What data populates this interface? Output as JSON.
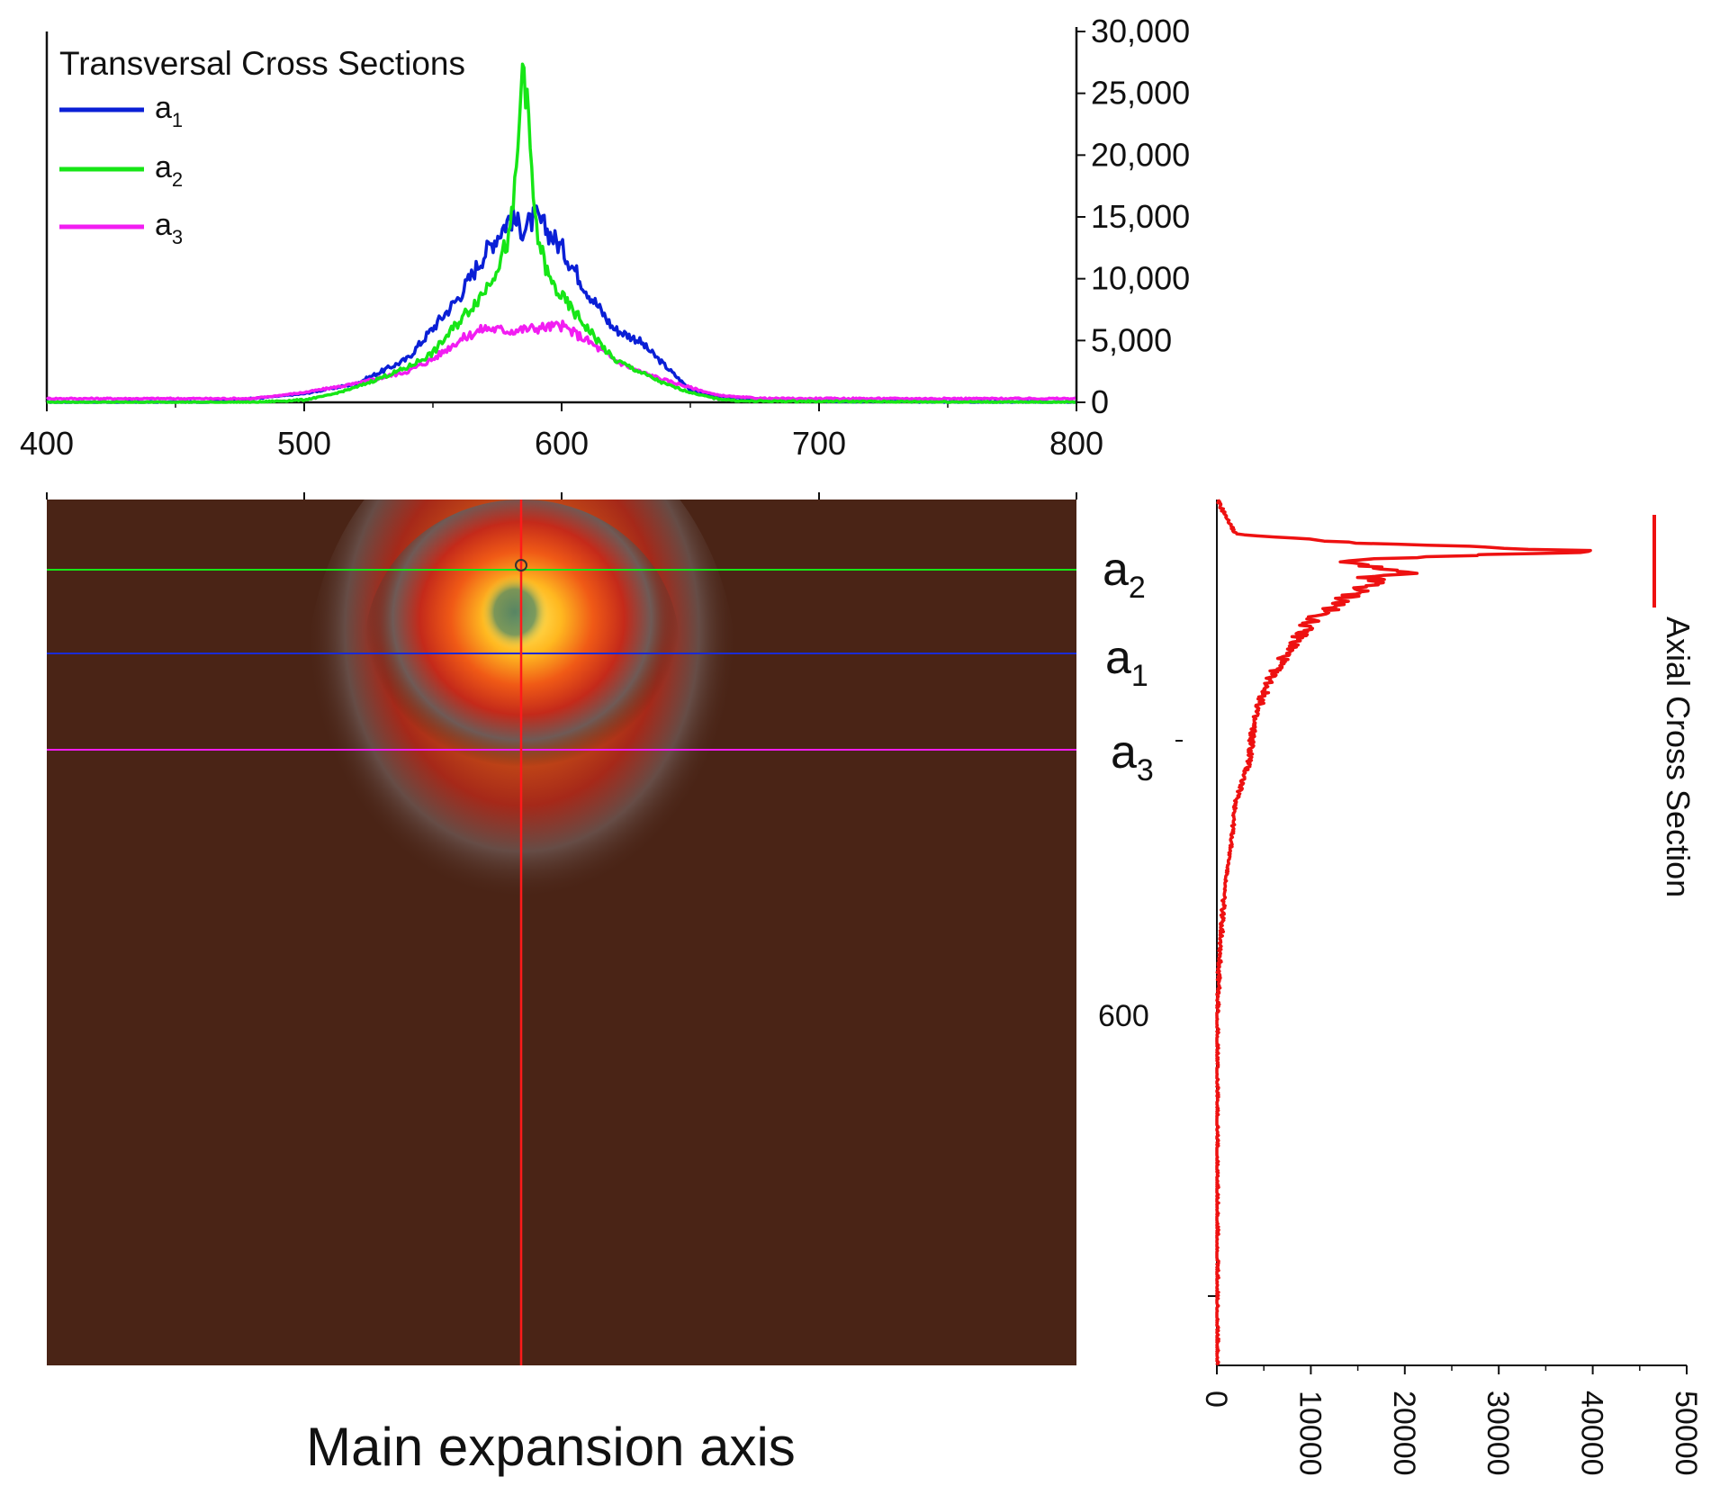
{
  "colors": {
    "a1": "#0a1fd6",
    "a2": "#16e616",
    "a3": "#f21df2",
    "axial": "#ee1111",
    "vertical_marker": "#ff1a1a",
    "image_background": "#4a2416"
  },
  "chart_data": [
    {
      "id": "transversal",
      "type": "line",
      "legend_title": "Transversal Cross Sections",
      "legend_position": "top-left",
      "xlim": [
        400,
        800
      ],
      "ylim": [
        0,
        30000
      ],
      "x_ticks": [
        400,
        500,
        600,
        700,
        800
      ],
      "x_tick_labels": [
        "400",
        "500",
        "600",
        "700",
        "800"
      ],
      "y_ticks": [
        0,
        5000,
        10000,
        15000,
        20000,
        25000,
        30000
      ],
      "y_tick_labels": [
        "0",
        "5,000",
        "10,000",
        "15,000",
        "20,000",
        "25,000",
        "30,000"
      ],
      "y_axis_side": "right",
      "series": [
        {
          "name": "a",
          "sub": "1",
          "color_key": "a1",
          "x": [
            400,
            460,
            480,
            500,
            520,
            540,
            550,
            560,
            570,
            580,
            585,
            590,
            600,
            610,
            620,
            630,
            640,
            650,
            660,
            680,
            700,
            800
          ],
          "y": [
            0,
            0,
            300,
            700,
            1500,
            3500,
            6000,
            8500,
            12000,
            15000,
            14000,
            15000,
            12500,
            9000,
            6000,
            5000,
            3000,
            1000,
            500,
            200,
            100,
            0
          ]
        },
        {
          "name": "a",
          "sub": "2",
          "color_key": "a2",
          "x": [
            400,
            480,
            500,
            510,
            520,
            530,
            540,
            550,
            560,
            570,
            575,
            580,
            583,
            585,
            590,
            595,
            600,
            610,
            620,
            630,
            640,
            650,
            660,
            670,
            800
          ],
          "y": [
            0,
            0,
            200,
            600,
            1200,
            2000,
            2800,
            4000,
            6500,
            9000,
            11000,
            13500,
            20000,
            28500,
            14000,
            10000,
            8500,
            6000,
            3500,
            2500,
            1500,
            800,
            300,
            100,
            0
          ]
        },
        {
          "name": "a",
          "sub": "3",
          "color_key": "a3",
          "x": [
            400,
            480,
            500,
            520,
            540,
            550,
            560,
            570,
            580,
            590,
            600,
            610,
            620,
            630,
            640,
            650,
            660,
            670,
            680,
            800
          ],
          "y": [
            300,
            300,
            800,
            1500,
            2500,
            3500,
            5000,
            6000,
            5800,
            6000,
            6200,
            5000,
            3500,
            2500,
            1800,
            1200,
            600,
            400,
            300,
            300
          ]
        }
      ]
    },
    {
      "id": "axial",
      "type": "line",
      "orientation": "vertical",
      "legend_label": "Axial Cross Section",
      "legend_position": "right",
      "xlim": [
        0,
        50000
      ],
      "x_ticks": [
        0,
        10000,
        20000,
        30000,
        40000,
        50000
      ],
      "x_tick_labels": [
        "0",
        "10000",
        "20000",
        "30000",
        "40000",
        "50000"
      ],
      "series": [
        {
          "name": "Axial Cross Section",
          "color_key": "axial",
          "y_frac": [
            0,
            0.02,
            0.04,
            0.05,
            0.06,
            0.07,
            0.075,
            0.08,
            0.085,
            0.09,
            0.095,
            0.105,
            0.12,
            0.14,
            0.17,
            0.2,
            0.25,
            0.3,
            0.35,
            0.4,
            0.45,
            0.5,
            0.55,
            0.6,
            0.7,
            0.8,
            0.9,
            1.0
          ],
          "value": [
            0,
            1000,
            2000,
            15000,
            40000,
            13000,
            15000,
            17000,
            20000,
            16000,
            17000,
            15000,
            13000,
            10000,
            8000,
            6000,
            4000,
            3500,
            2000,
            1500,
            800,
            500,
            200,
            0,
            0,
            0,
            0,
            0
          ]
        }
      ]
    }
  ],
  "image_panel": {
    "xlabel": "Main expansion axis",
    "row_labels": [
      {
        "name": "a",
        "sub": "2",
        "color_key": "a2"
      },
      {
        "name": "a",
        "sub": "1",
        "color_key": "a1"
      },
      {
        "name": "a",
        "sub": "3",
        "color_key": "a3"
      }
    ],
    "y_tick_label": "600"
  }
}
